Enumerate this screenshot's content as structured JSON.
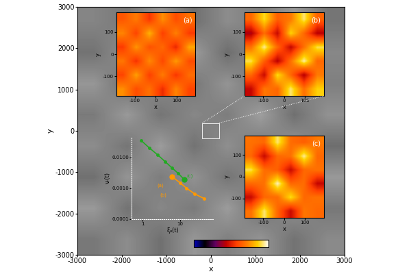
{
  "chart_data": [
    {
      "type": "heatmap",
      "color": "gray",
      "xlabel": "x",
      "ylabel": "y",
      "xlim": [
        -3000,
        3000
      ],
      "ylim": [
        -3000,
        3000
      ],
      "xticks": [
        -3000,
        -2000,
        -1000,
        0,
        1000,
        2000,
        3000
      ],
      "yticks": [
        -3000,
        -2000,
        -1000,
        0,
        1000,
        2000,
        3000
      ],
      "cells": [
        [
          0.52,
          0.47,
          0.58,
          0.44,
          0.55,
          0.49,
          0.6,
          0.46
        ],
        [
          0.45,
          0.57,
          0.5,
          0.61,
          0.43,
          0.56,
          0.48,
          0.53
        ],
        [
          0.59,
          0.44,
          0.54,
          0.47,
          0.58,
          0.45,
          0.55,
          0.5
        ],
        [
          0.48,
          0.6,
          0.46,
          0.53,
          0.49,
          0.62,
          0.44,
          0.57
        ],
        [
          0.55,
          0.46,
          0.61,
          0.45,
          0.56,
          0.47,
          0.59,
          0.43
        ],
        [
          0.44,
          0.58,
          0.49,
          0.57,
          0.46,
          0.54,
          0.5,
          0.6
        ],
        [
          0.6,
          0.45,
          0.53,
          0.48,
          0.61,
          0.44,
          0.56,
          0.47
        ],
        [
          0.47,
          0.55,
          0.44,
          0.59,
          0.5,
          0.58,
          0.45,
          0.54
        ]
      ],
      "colorbar": {
        "range": [
          0,
          1
        ],
        "ticks": []
      }
    },
    {
      "type": "heatmap",
      "title": "(a)",
      "xlabel": "x",
      "ylabel": "y",
      "xlim": [
        -190,
        190
      ],
      "ylim": [
        -190,
        190
      ],
      "xticks": [
        -100,
        0,
        100
      ],
      "yticks": [
        -100,
        0,
        100
      ],
      "cells": [
        [
          0.62,
          0.7,
          0.55,
          0.74,
          0.6,
          0.68
        ],
        [
          0.72,
          0.58,
          0.8,
          0.57,
          0.71,
          0.56
        ],
        [
          0.56,
          0.75,
          0.61,
          0.66,
          0.52,
          0.78
        ],
        [
          0.69,
          0.54,
          0.73,
          0.59,
          0.76,
          0.6
        ],
        [
          0.58,
          0.77,
          0.57,
          0.7,
          0.55,
          0.67
        ],
        [
          0.74,
          0.6,
          0.68,
          0.53,
          0.72,
          0.58
        ]
      ]
    },
    {
      "type": "heatmap",
      "title": "(b)",
      "xlabel": "x",
      "ylabel": "y",
      "xlim": [
        -190,
        190
      ],
      "ylim": [
        -190,
        190
      ],
      "xticks": [
        -100,
        0,
        100
      ],
      "yticks": [
        -100,
        0,
        100
      ],
      "cells": [
        [
          0.66,
          0.88,
          0.64,
          0.7,
          0.92,
          0.65
        ],
        [
          0.4,
          0.67,
          0.45,
          0.86,
          0.66,
          0.42
        ],
        [
          0.68,
          0.94,
          0.66,
          0.44,
          0.68,
          0.9
        ],
        [
          0.9,
          0.64,
          0.42,
          0.68,
          0.95,
          0.66
        ],
        [
          0.66,
          0.45,
          0.88,
          0.66,
          0.42,
          0.7
        ],
        [
          0.44,
          0.69,
          0.66,
          0.92,
          0.68,
          0.86
        ]
      ]
    },
    {
      "type": "heatmap",
      "title": "(c)",
      "xlabel": "x",
      "ylabel": "y",
      "xlim": [
        -190,
        190
      ],
      "ylim": [
        -190,
        190
      ],
      "xticks": [
        -100,
        0,
        100
      ],
      "yticks": [
        -100,
        0,
        100
      ],
      "cells": [
        [
          0.68,
          0.66,
          0.92,
          0.67,
          0.64,
          0.7
        ],
        [
          0.66,
          0.45,
          0.66,
          0.68,
          0.94,
          0.66
        ],
        [
          0.9,
          0.67,
          0.64,
          0.45,
          0.66,
          0.68
        ],
        [
          0.66,
          0.68,
          0.96,
          0.66,
          0.67,
          0.44
        ],
        [
          0.45,
          0.66,
          0.67,
          0.88,
          0.66,
          0.68
        ],
        [
          0.68,
          0.92,
          0.66,
          0.45,
          0.69,
          0.66
        ]
      ]
    },
    {
      "type": "line",
      "log": true,
      "xlabel": "ξᵤ(t)",
      "ylabel": "vᵣ(t)",
      "xlim": [
        0.5,
        80
      ],
      "ylim": [
        0.0001,
        0.045
      ],
      "xticks": [
        1,
        10
      ],
      "yticks": [
        {
          "value": 0.0001,
          "label": "0.0001"
        },
        {
          "value": 0.001,
          "label": "0.0010"
        },
        {
          "value": 0.01,
          "label": "0.0100"
        }
      ],
      "series": [
        {
          "color": "#22aa22",
          "marker": "o",
          "x": [
            0.9,
            1.5,
            2.5,
            4,
            6,
            9,
            13
          ],
          "values": [
            0.035,
            0.02,
            0.012,
            0.0072,
            0.0046,
            0.003,
            0.0019
          ]
        },
        {
          "color": "#ff9900",
          "marker": "o",
          "x": [
            6,
            10,
            15,
            25,
            45
          ],
          "values": [
            0.0024,
            0.0015,
            0.001,
            0.00065,
            0.00046
          ]
        }
      ],
      "annotations": [
        {
          "text": "(a)",
          "x": 3.0,
          "y": 0.0012,
          "color": "#ff9900"
        },
        {
          "text": "(b)",
          "x": 3.5,
          "y": 0.0006,
          "color": "#ff9900"
        },
        {
          "text": "(c)",
          "x": 18,
          "y": 0.0025,
          "color": "#22aa22"
        }
      ]
    }
  ]
}
